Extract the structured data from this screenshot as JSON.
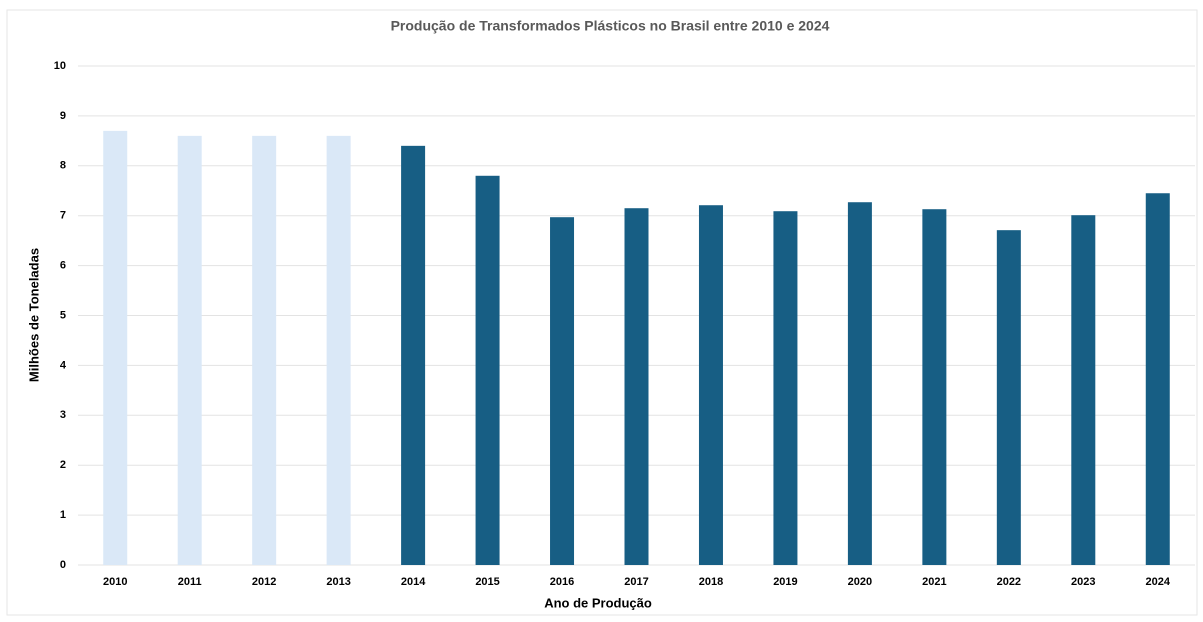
{
  "chart_data": {
    "type": "bar",
    "title": "Produção de Transformados Plásticos no Brasil entre 2010 e 2024",
    "x_label": "Ano de Produção",
    "y_label": "Milhões de Toneladas",
    "categories": [
      "2010",
      "2011",
      "2012",
      "2013",
      "2014",
      "2015",
      "2016",
      "2017",
      "2018",
      "2019",
      "2020",
      "2021",
      "2022",
      "2023",
      "2024"
    ],
    "values": [
      8.7,
      8.6,
      8.6,
      8.6,
      8.4,
      7.8,
      6.97,
      7.15,
      7.21,
      7.09,
      7.27,
      7.13,
      6.71,
      7.01,
      7.45
    ],
    "colors": [
      "#dae8f7",
      "#dae8f7",
      "#dae8f7",
      "#dae8f7",
      "#175e84",
      "#175e84",
      "#175e84",
      "#175e84",
      "#175e84",
      "#175e84",
      "#175e84",
      "#175e84",
      "#175e84",
      "#175e84",
      "#175e84"
    ],
    "ylim": [
      0,
      10
    ],
    "yticks": [
      0,
      1,
      2,
      3,
      4,
      5,
      6,
      7,
      8,
      9,
      10
    ],
    "grid": true
  }
}
